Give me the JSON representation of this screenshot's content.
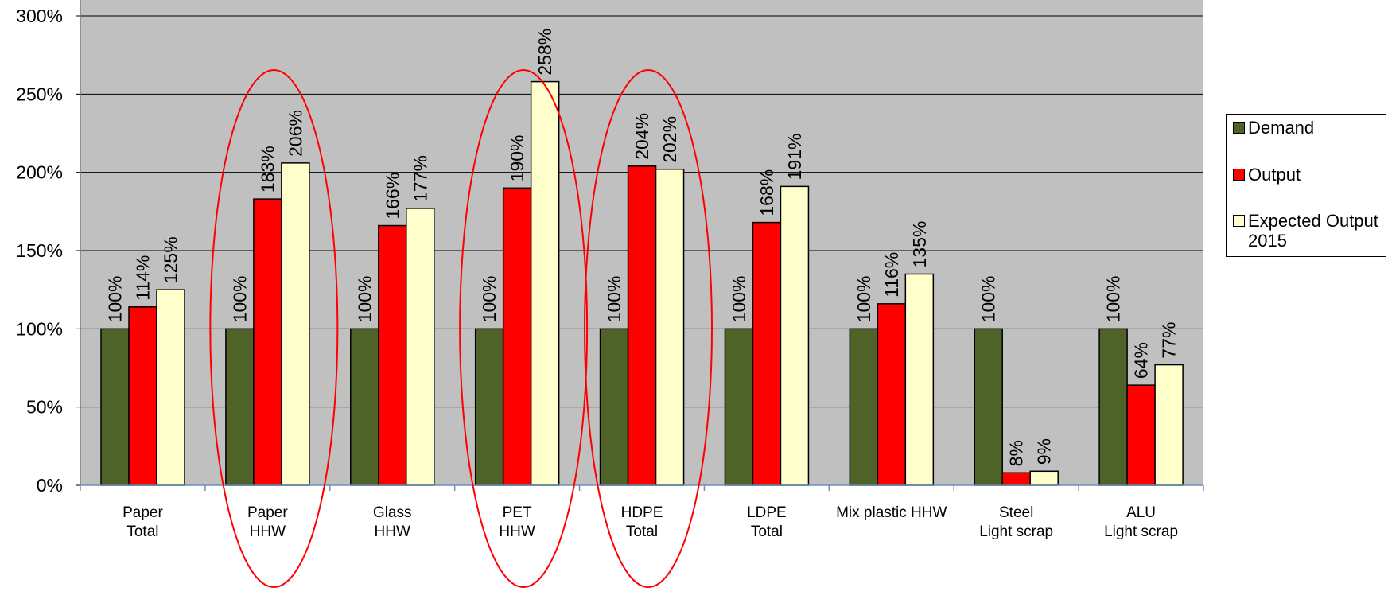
{
  "chart_data": {
    "type": "bar",
    "categories": [
      "Paper\nTotal",
      "Paper\nHHW",
      "Glass\nHHW",
      "PET\nHHW",
      "HDPE\nTotal",
      "LDPE\nTotal",
      "Mix plastic HHW",
      "Steel\nLight scrap",
      "ALU\nLight scrap"
    ],
    "series": [
      {
        "name": "Demand",
        "color": "#4f6228",
        "values": [
          100,
          100,
          100,
          100,
          100,
          100,
          100,
          100,
          100
        ],
        "labels": [
          "100%",
          "100%",
          "100%",
          "100%",
          "100%",
          "100%",
          "100%",
          "100%",
          "100%"
        ]
      },
      {
        "name": "Output",
        "color": "#ff0000",
        "values": [
          114,
          183,
          166,
          190,
          204,
          168,
          116,
          8,
          64
        ],
        "labels": [
          "114%",
          "183%",
          "166%",
          "190%",
          "204%",
          "168%",
          "116%",
          "8%",
          "64%"
        ]
      },
      {
        "name": "Expected Output\n2015",
        "color": "#ffffcc",
        "values": [
          125,
          206,
          177,
          258,
          202,
          191,
          135,
          9,
          77
        ],
        "labels": [
          "125%",
          "206%",
          "177%",
          "258%",
          "202%",
          "191%",
          "135%",
          "9%",
          "77%"
        ]
      }
    ],
    "y_ticks": [
      0,
      50,
      100,
      150,
      200,
      250,
      300
    ],
    "y_tick_labels": [
      "0%",
      "50%",
      "100%",
      "150%",
      "200%",
      "250%",
      "300%"
    ],
    "ylim": [
      0,
      300
    ],
    "grid": true,
    "plot_background": "#c0c0c0",
    "legend_position": "right",
    "highlighted_categories": [
      "Paper\nHHW",
      "PET\nHHW",
      "HDPE\nTotal"
    ],
    "highlight_color": "#ff0000"
  }
}
